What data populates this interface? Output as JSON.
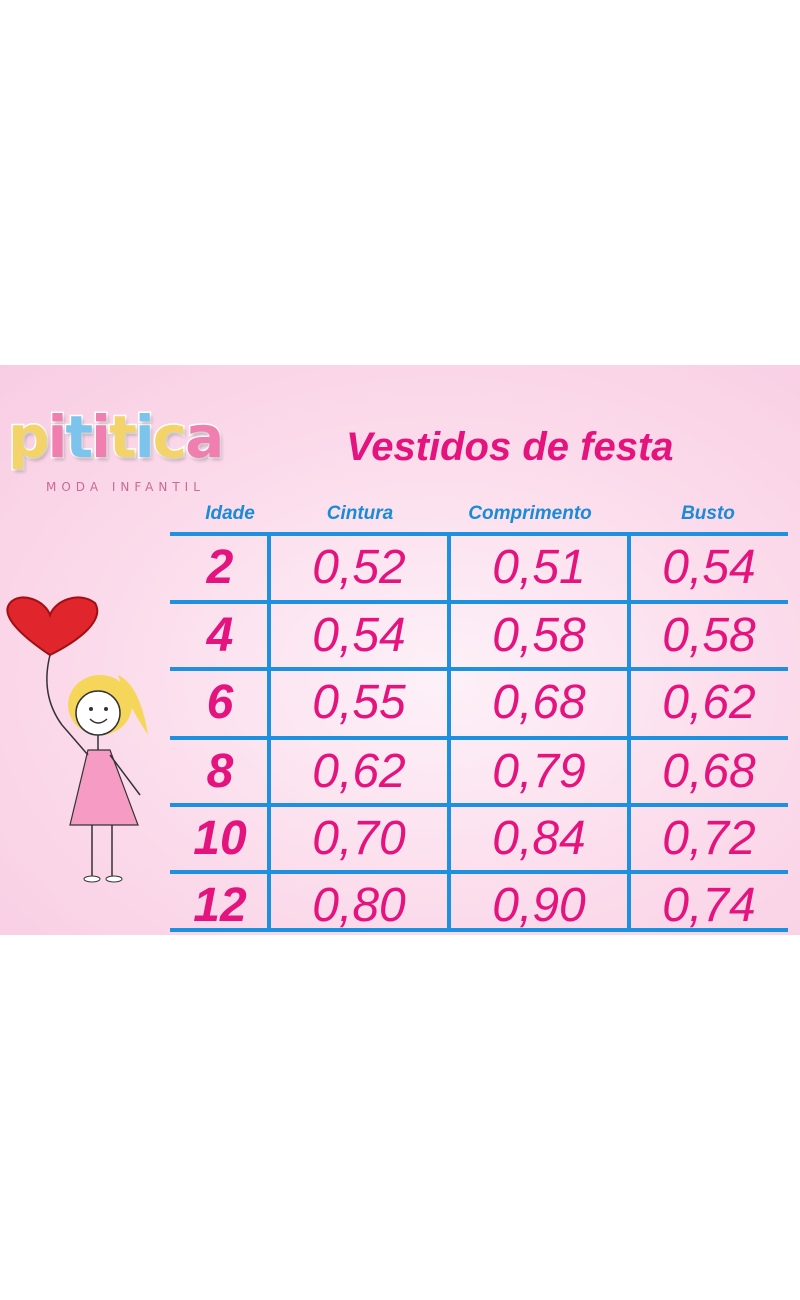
{
  "brand": {
    "logo_letters": [
      "p",
      "i",
      "t",
      "i",
      "t",
      "i",
      "c",
      "a"
    ],
    "logo_colors": [
      "#f3d36a",
      "#f07fb0",
      "#7cc4ee",
      "#f07fb0",
      "#f3d36a",
      "#7cc4ee",
      "#f3d36a",
      "#f07fb0"
    ],
    "tagline": "MODA INFANTIL"
  },
  "title": "Vestidos de festa",
  "table": {
    "headers": [
      "Idade",
      "Cintura",
      "Comprimento",
      "Busto"
    ],
    "rows": [
      [
        "2",
        "0,52",
        "0,51",
        "0,54"
      ],
      [
        "4",
        "0,54",
        "0,58",
        "0,58"
      ],
      [
        "6",
        "0,55",
        "0,68",
        "0,62"
      ],
      [
        "8",
        "0,62",
        "0,79",
        "0,68"
      ],
      [
        "10",
        "0,70",
        "0,84",
        "0,72"
      ],
      [
        "12",
        "0,80",
        "0,90",
        "0,74"
      ]
    ]
  },
  "colors": {
    "pink": "#e4137d",
    "blue": "#1e90e0"
  }
}
